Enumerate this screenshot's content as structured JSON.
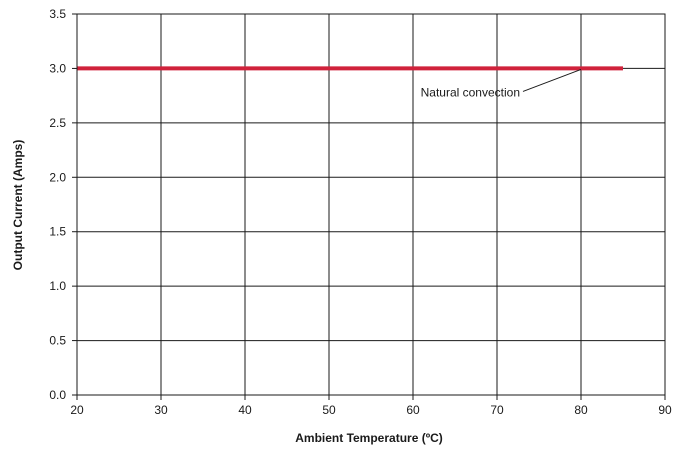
{
  "chart_data": {
    "type": "line",
    "title": "",
    "xlabel": "Ambient Temperature (ºC)",
    "ylabel": "Output Current (Amps)",
    "xlim": [
      20,
      90
    ],
    "ylim": [
      0.0,
      3.5
    ],
    "x_ticks": [
      "20",
      "30",
      "40",
      "50",
      "60",
      "70",
      "80",
      "90"
    ],
    "y_ticks": [
      "0.0",
      "0.5",
      "1.0",
      "1.5",
      "2.0",
      "2.5",
      "3.0",
      "3.5"
    ],
    "grid": true,
    "series": [
      {
        "name": "",
        "color": "#d0223b",
        "x": [
          20,
          85
        ],
        "y": [
          3.0,
          3.0
        ]
      }
    ],
    "annotations": [
      {
        "text": "Natural convection",
        "x": 80,
        "y": 3.0
      }
    ]
  }
}
